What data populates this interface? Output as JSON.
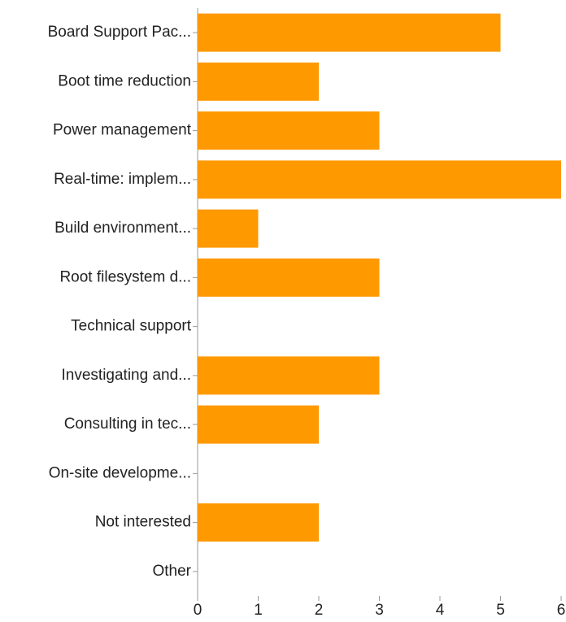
{
  "chart_data": {
    "type": "bar",
    "orientation": "horizontal",
    "categories": [
      "Board Support Pac...",
      "Boot time reduction",
      "Power management",
      "Real-time: implem...",
      "Build environment...",
      "Root filesystem d...",
      "Technical support",
      "Investigating and...",
      "Consulting in tec...",
      "On-site developme...",
      "Not interested",
      "Other"
    ],
    "values": [
      5,
      2,
      3,
      6,
      1,
      3,
      0,
      3,
      2,
      0,
      2,
      0
    ],
    "color": "#ff9900",
    "xlim": [
      0,
      6
    ],
    "xticks": [
      0,
      1,
      2,
      3,
      4,
      5,
      6
    ],
    "grid": false
  }
}
